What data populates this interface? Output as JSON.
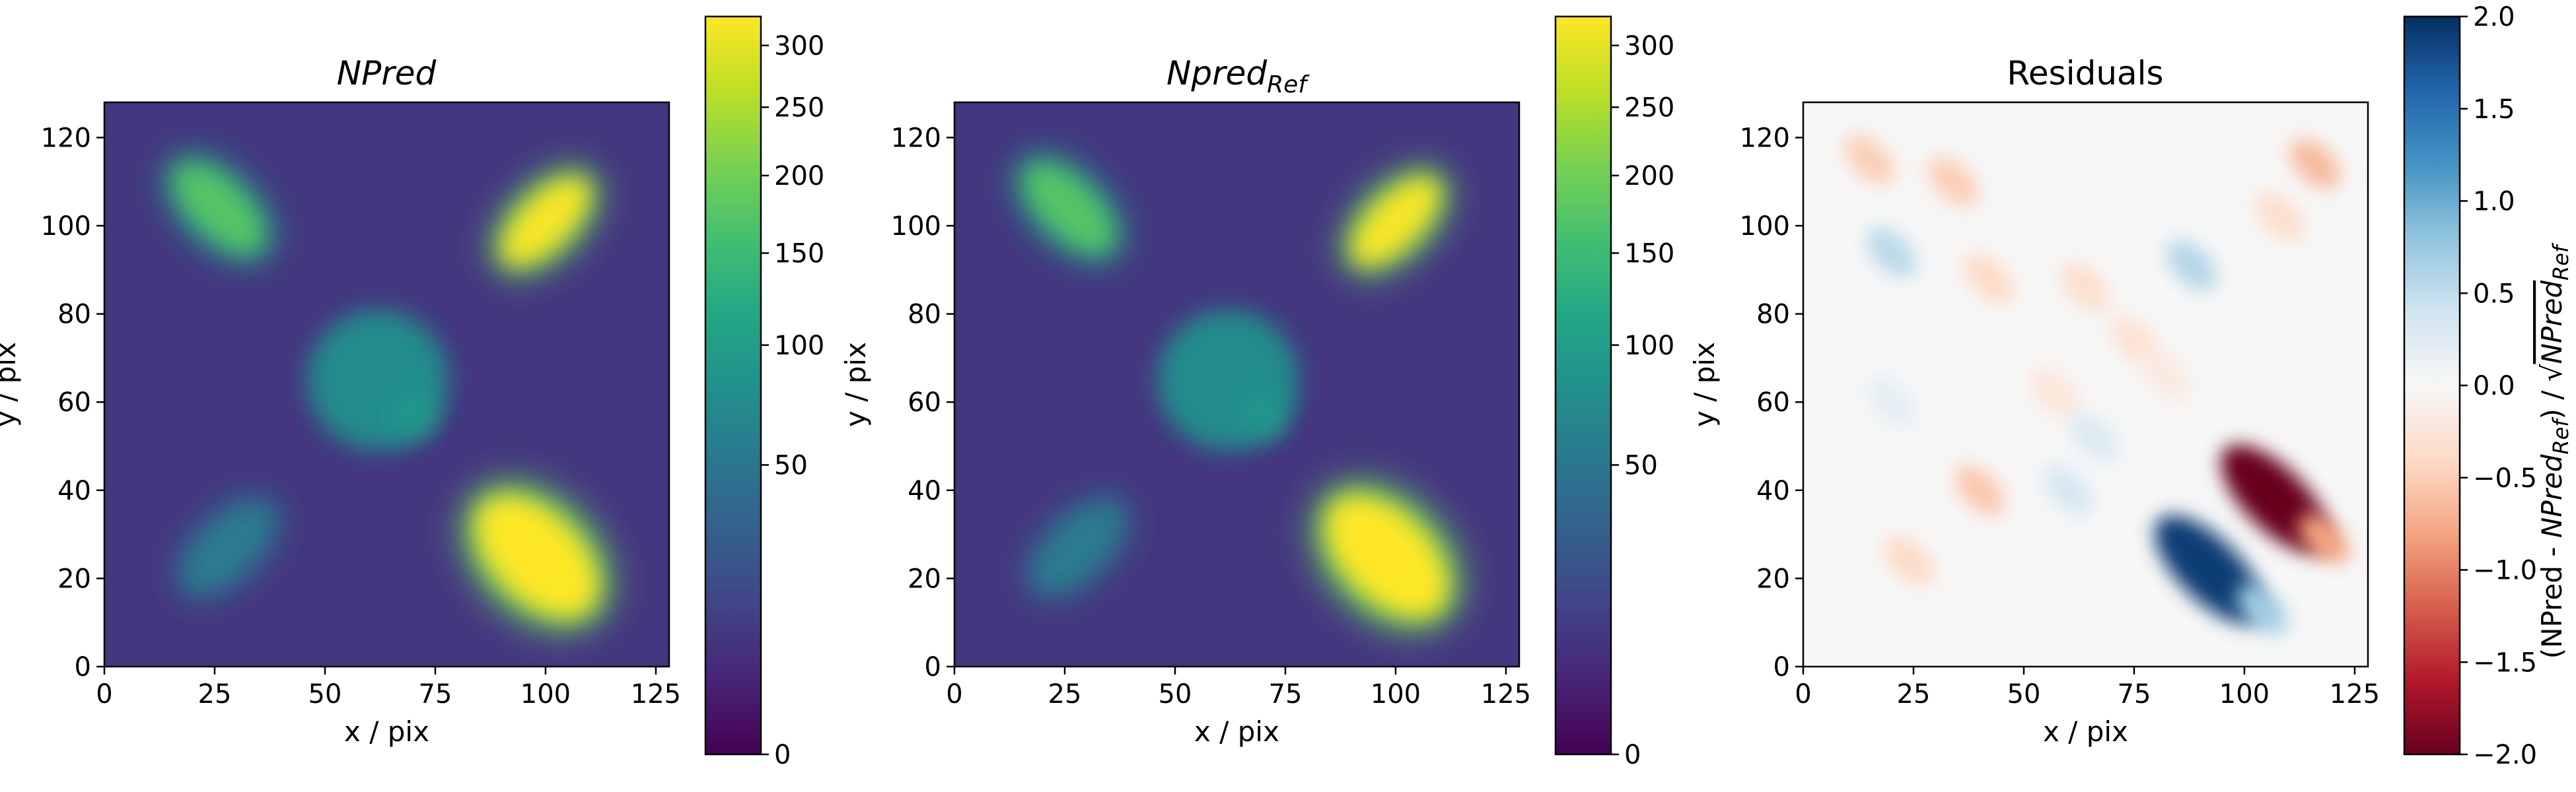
{
  "figure": {
    "background": "#ffffff"
  },
  "chart_data": [
    {
      "type": "heatmap",
      "title": "NPred",
      "title_style": "italic",
      "xlabel": "x / pix",
      "ylabel": "y / pix",
      "xlim": [
        0,
        128
      ],
      "ylim": [
        0,
        128
      ],
      "xticks": [
        0,
        25,
        50,
        75,
        100,
        125
      ],
      "yticks": [
        0,
        20,
        40,
        60,
        80,
        100,
        120
      ],
      "colormap": "viridis",
      "color_scale": "sqrt",
      "colorbar": {
        "range": [
          0,
          325
        ],
        "ticks": [
          0,
          50,
          100,
          150,
          200,
          250,
          300
        ],
        "label": ""
      },
      "background_level": 8,
      "sources": [
        {
          "shape": "elongated gaussian",
          "center": [
            26,
            104
          ],
          "peak": 175,
          "orientation_deg": -45
        },
        {
          "shape": "elongated gaussian",
          "center": [
            100,
            101
          ],
          "peak": 320,
          "orientation_deg": 45
        },
        {
          "shape": "disk",
          "center": [
            62,
            65
          ],
          "peak": 75
        },
        {
          "shape": "gaussian",
          "center": [
            70,
            57
          ],
          "peak": 90
        },
        {
          "shape": "elongated gaussian",
          "center": [
            28,
            27
          ],
          "peak": 55,
          "orientation_deg": 45
        },
        {
          "shape": "elongated gaussian",
          "center": [
            98,
            25
          ],
          "peak": 330,
          "orientation_deg": -45,
          "saturated": true
        }
      ]
    },
    {
      "type": "heatmap",
      "title_main": "Npred",
      "title_sub": "Ref",
      "title_style": "italic",
      "xlabel": "x / pix",
      "ylabel": "y / pix",
      "xlim": [
        0,
        128
      ],
      "ylim": [
        0,
        128
      ],
      "xticks": [
        0,
        25,
        50,
        75,
        100,
        125
      ],
      "yticks": [
        0,
        20,
        40,
        60,
        80,
        100,
        120
      ],
      "colormap": "viridis",
      "color_scale": "sqrt",
      "colorbar": {
        "range": [
          0,
          325
        ],
        "ticks": [
          0,
          50,
          100,
          150,
          200,
          250,
          300
        ],
        "label": ""
      },
      "background_level": 8,
      "sources": [
        {
          "shape": "elongated gaussian",
          "center": [
            26,
            104
          ],
          "peak": 175,
          "orientation_deg": -45
        },
        {
          "shape": "elongated gaussian",
          "center": [
            100,
            101
          ],
          "peak": 320,
          "orientation_deg": 45
        },
        {
          "shape": "disk",
          "center": [
            62,
            65
          ],
          "peak": 75
        },
        {
          "shape": "gaussian",
          "center": [
            70,
            57
          ],
          "peak": 90
        },
        {
          "shape": "elongated gaussian",
          "center": [
            28,
            27
          ],
          "peak": 55,
          "orientation_deg": 45
        },
        {
          "shape": "elongated gaussian",
          "center": [
            98,
            25
          ],
          "peak": 330,
          "orientation_deg": -45,
          "saturated": true
        }
      ]
    },
    {
      "type": "heatmap",
      "title": "Residuals",
      "title_style": "normal",
      "xlabel": "x / pix",
      "ylabel": "y / pix",
      "xlim": [
        0,
        128
      ],
      "ylim": [
        0,
        128
      ],
      "xticks": [
        0,
        25,
        50,
        75,
        100,
        125
      ],
      "yticks": [
        0,
        20,
        40,
        60,
        80,
        100,
        120
      ],
      "colormap": "RdBu",
      "color_scale": "linear",
      "colorbar": {
        "range": [
          -2.0,
          2.0
        ],
        "ticks": [
          -2.0,
          -1.5,
          -1.0,
          -0.5,
          0.0,
          0.5,
          1.0,
          1.5,
          2.0
        ],
        "tick_labels": [
          "−2.0",
          "−1.5",
          "−1.0",
          "−0.5",
          "0.0",
          "0.5",
          "1.0",
          "1.5",
          "2.0"
        ],
        "label_main": "(NPred - ",
        "label_npred": "NPred",
        "label_sub": "Ref",
        "label_mid": ") / √"
      },
      "features": [
        {
          "center": [
            15,
            115
          ],
          "value": -0.5
        },
        {
          "center": [
            20,
            94
          ],
          "value": 0.55
        },
        {
          "center": [
            34,
            110
          ],
          "value": -0.5
        },
        {
          "center": [
            42,
            88
          ],
          "value": -0.4
        },
        {
          "center": [
            88,
            91
          ],
          "value": 0.6
        },
        {
          "center": [
            108,
            102
          ],
          "value": -0.35
        },
        {
          "center": [
            116,
            114
          ],
          "value": -0.65
        },
        {
          "center": [
            64,
            86
          ],
          "value": -0.35
        },
        {
          "center": [
            75,
            74
          ],
          "value": -0.3
        },
        {
          "center": [
            57,
            62
          ],
          "value": -0.25
        },
        {
          "center": [
            82,
            66
          ],
          "value": -0.2
        },
        {
          "center": [
            66,
            52
          ],
          "value": 0.3
        },
        {
          "center": [
            40,
            40
          ],
          "value": -0.55
        },
        {
          "center": [
            24,
            24
          ],
          "value": -0.4
        },
        {
          "center": [
            107,
            38
          ],
          "value": -2.0
        },
        {
          "center": [
            118,
            29
          ],
          "value": -0.8
        },
        {
          "center": [
            92,
            22
          ],
          "value": 1.9
        },
        {
          "center": [
            104,
            13
          ],
          "value": 0.7
        },
        {
          "center": [
            60,
            40
          ],
          "value": 0.35
        },
        {
          "center": [
            20,
            60
          ],
          "value": 0.2
        }
      ]
    }
  ]
}
